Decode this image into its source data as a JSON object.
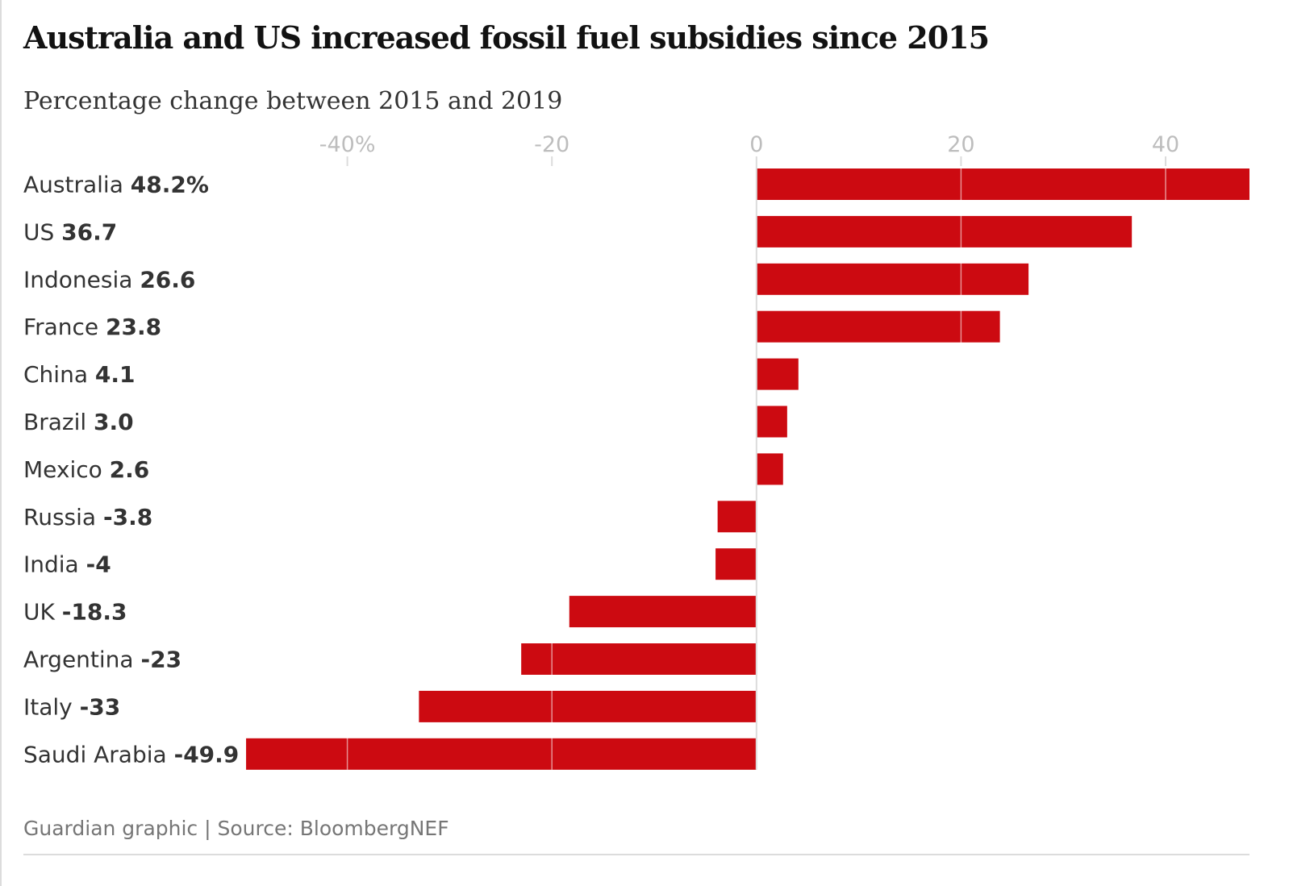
{
  "title": "Australia and US increased fossil fuel subsidies since 2015",
  "subtitle": "Percentage change between 2015 and 2019",
  "source": "Guardian graphic | Source: BloombergNEF",
  "colors": {
    "bar": "#cc0a11",
    "tick_label": "#bdbdbd",
    "gridline": "#dcdcdc",
    "text": "#333333"
  },
  "chart_data": {
    "type": "bar",
    "orientation": "horizontal",
    "categories": [
      "Australia",
      "US",
      "Indonesia",
      "France",
      "China",
      "Brazil",
      "Mexico",
      "Russia",
      "India",
      "UK",
      "Argentina",
      "Italy",
      "Saudi Arabia"
    ],
    "values": [
      48.2,
      36.7,
      26.6,
      23.8,
      4.1,
      3.0,
      2.6,
      -3.8,
      -4,
      -18.3,
      -23,
      -33,
      -49.9
    ],
    "value_labels": [
      "48.2%",
      "36.7",
      "26.6",
      "23.8",
      "4.1",
      "3.0",
      "2.6",
      "-3.8",
      "-4",
      "-18.3",
      "-23",
      "-33",
      "-49.9"
    ],
    "xlim": [
      -60,
      48.2
    ],
    "xticks": [
      -40,
      -20,
      0,
      20,
      40
    ],
    "xtick_labels": [
      "-40%",
      "-20",
      "0",
      "20",
      "40"
    ],
    "grid": true
  }
}
